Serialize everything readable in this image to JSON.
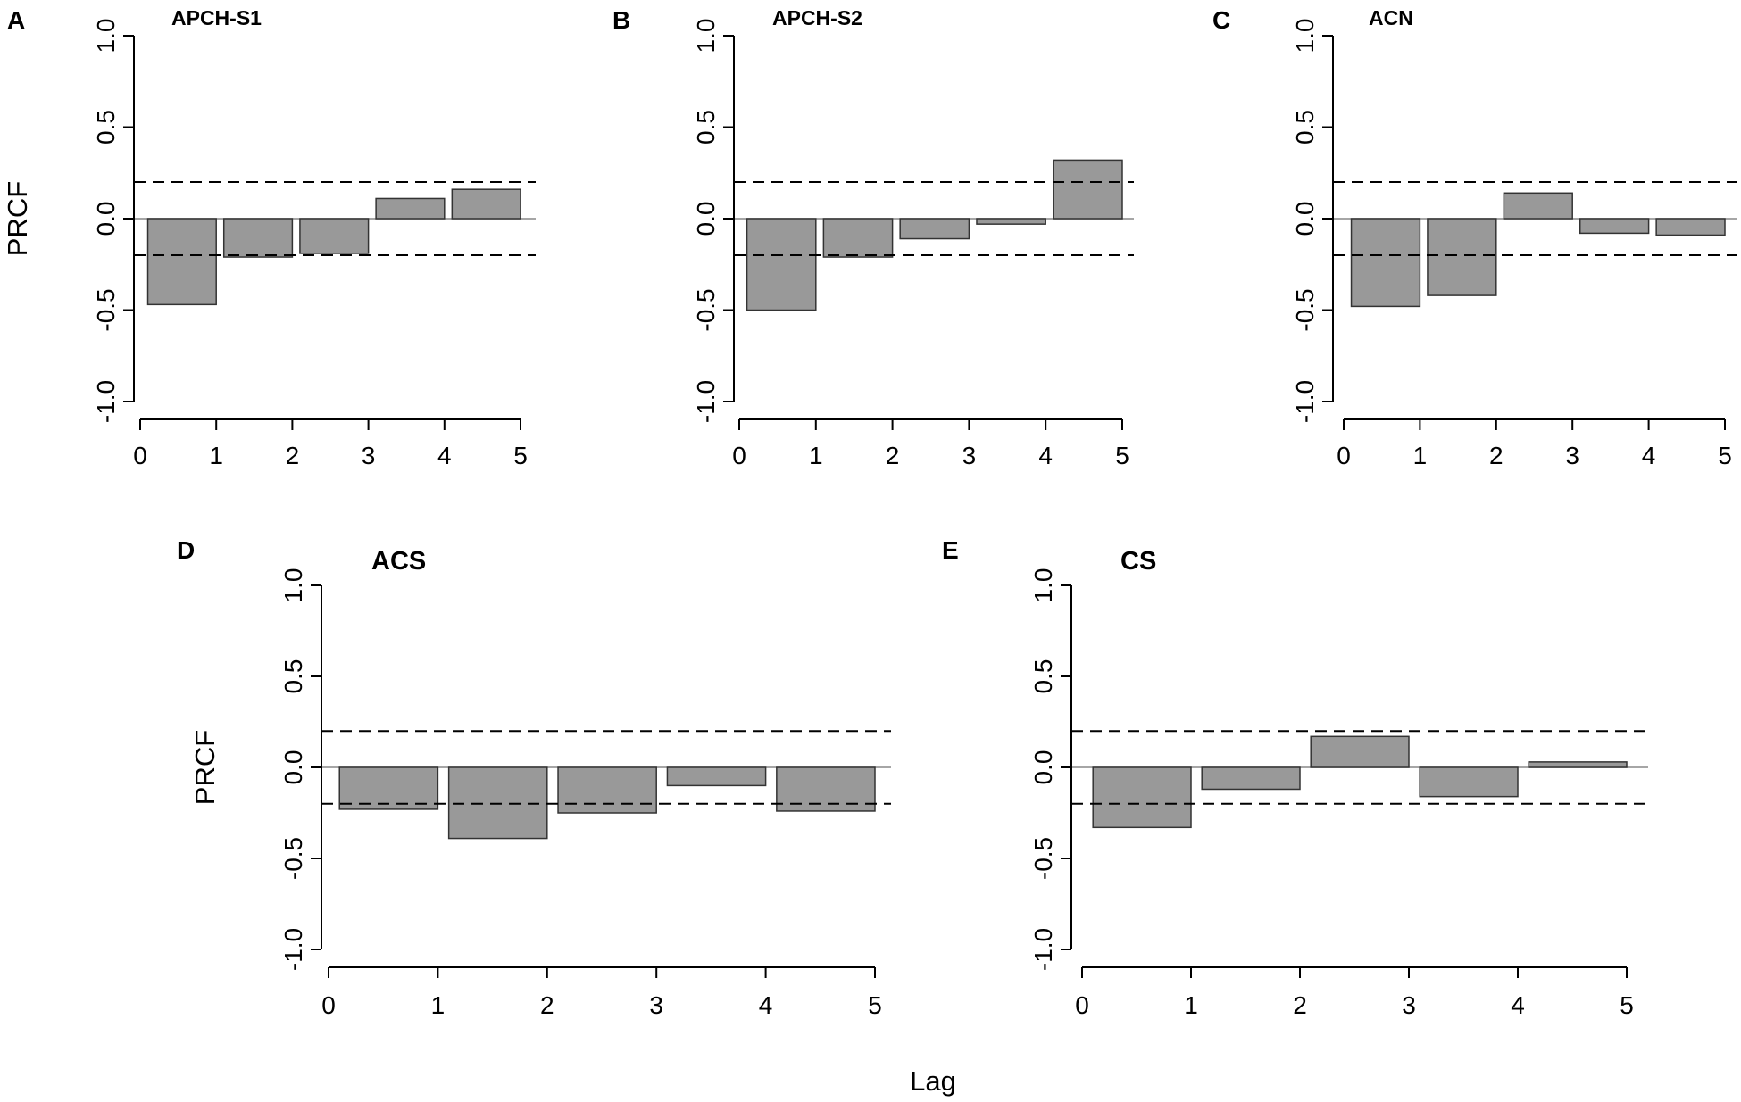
{
  "figure": {
    "ylabel": "PRCF",
    "xlabel": "Lag",
    "colors": {
      "bar_fill": "#999999",
      "bar_edge": "#333333",
      "zero_line": "#888888",
      "ci_line": "#000000"
    }
  },
  "chart_data": [
    {
      "panel": "A",
      "title": "APCH-S1",
      "type": "bar",
      "xlabel": "",
      "ylabel": "PRCF",
      "x_ticks": [
        0,
        1,
        2,
        3,
        4,
        5
      ],
      "xlim": [
        0,
        5
      ],
      "y_ticks": [
        -1.0,
        -0.5,
        0.0,
        0.5,
        1.0
      ],
      "y_tick_labels": [
        "-1.0",
        "-0.5",
        "0.0",
        "0.5",
        "1.0"
      ],
      "ylim": [
        -1.0,
        1.0
      ],
      "confidence_bound": 0.2,
      "categories": [
        1,
        2,
        3,
        4,
        5
      ],
      "values": [
        -0.47,
        -0.21,
        -0.19,
        0.11,
        0.16
      ]
    },
    {
      "panel": "B",
      "title": "APCH-S2",
      "type": "bar",
      "xlabel": "",
      "ylabel": "",
      "x_ticks": [
        0,
        1,
        2,
        3,
        4,
        5
      ],
      "xlim": [
        0,
        5
      ],
      "y_ticks": [
        -1.0,
        -0.5,
        0.0,
        0.5,
        1.0
      ],
      "y_tick_labels": [
        "-1.0",
        "-0.5",
        "0.0",
        "0.5",
        "1.0"
      ],
      "ylim": [
        -1.0,
        1.0
      ],
      "confidence_bound": 0.2,
      "categories": [
        1,
        2,
        3,
        4,
        5
      ],
      "values": [
        -0.5,
        -0.21,
        -0.11,
        -0.03,
        0.32
      ]
    },
    {
      "panel": "C",
      "title": "ACN",
      "type": "bar",
      "xlabel": "",
      "ylabel": "",
      "x_ticks": [
        0,
        1,
        2,
        3,
        4,
        5
      ],
      "xlim": [
        0,
        5
      ],
      "y_ticks": [
        -1.0,
        -0.5,
        0.0,
        0.5,
        1.0
      ],
      "y_tick_labels": [
        "-1.0",
        "-0.5",
        "0.0",
        "0.5",
        "1.0"
      ],
      "ylim": [
        -1.0,
        1.0
      ],
      "confidence_bound": 0.2,
      "categories": [
        1,
        2,
        3,
        4,
        5
      ],
      "values": [
        -0.48,
        -0.42,
        0.14,
        -0.08,
        -0.09
      ]
    },
    {
      "panel": "D",
      "title": "ACS",
      "type": "bar",
      "xlabel": "",
      "ylabel": "PRCF",
      "x_ticks": [
        0,
        1,
        2,
        3,
        4,
        5
      ],
      "xlim": [
        0,
        5
      ],
      "y_ticks": [
        -1.0,
        -0.5,
        0.0,
        0.5,
        1.0
      ],
      "y_tick_labels": [
        "-1.0",
        "-0.5",
        "0.0",
        "0.5",
        "1.0"
      ],
      "ylim": [
        -1.0,
        1.0
      ],
      "confidence_bound": 0.2,
      "categories": [
        1,
        2,
        3,
        4,
        5
      ],
      "values": [
        -0.23,
        -0.39,
        -0.25,
        -0.1,
        -0.24
      ]
    },
    {
      "panel": "E",
      "title": "CS",
      "type": "bar",
      "xlabel": "",
      "ylabel": "",
      "x_ticks": [
        0,
        1,
        2,
        3,
        4,
        5
      ],
      "xlim": [
        0,
        5
      ],
      "y_ticks": [
        -1.0,
        -0.5,
        0.0,
        0.5,
        1.0
      ],
      "y_tick_labels": [
        "-1.0",
        "-0.5",
        "0.0",
        "0.5",
        "1.0"
      ],
      "ylim": [
        -1.0,
        1.0
      ],
      "confidence_bound": 0.2,
      "categories": [
        1,
        2,
        3,
        4,
        5
      ],
      "values": [
        -0.33,
        -0.12,
        0.17,
        -0.16,
        0.03
      ]
    }
  ]
}
